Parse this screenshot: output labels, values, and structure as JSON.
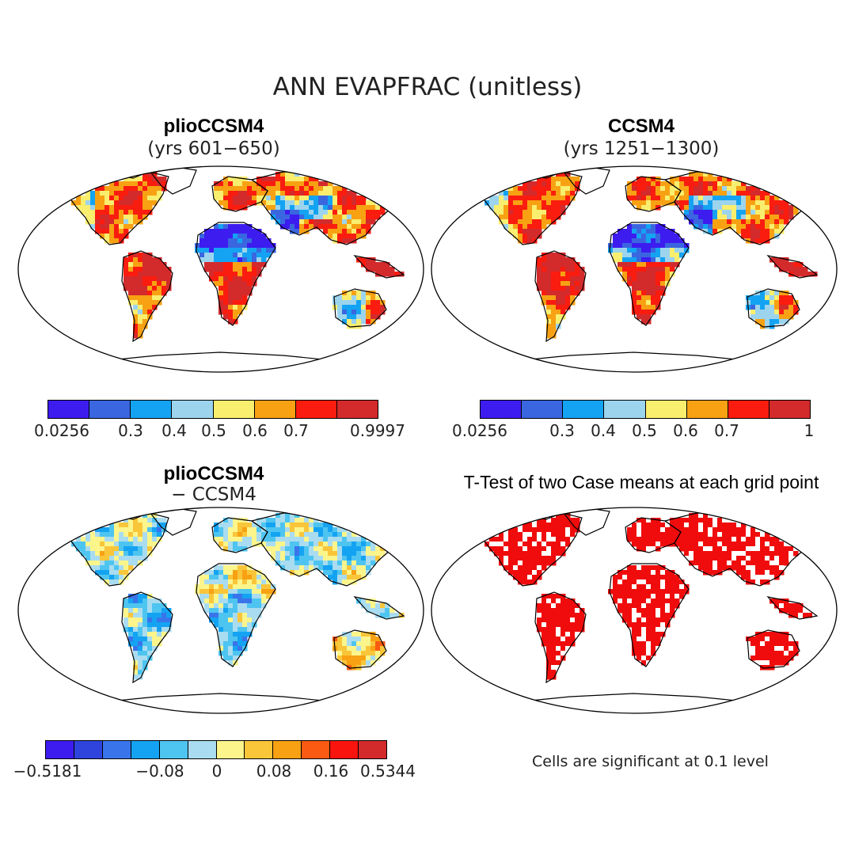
{
  "title": "ANN EVAPFRAC (unitless)",
  "colors": {
    "ratio_scale": [
      "#3d1cf0",
      "#3a66e0",
      "#14a3f2",
      "#9cd4ee",
      "#f9ee6e",
      "#f7a113",
      "#fa1c0f",
      "#d32a2c"
    ],
    "diff_scale": [
      "#3d1cf0",
      "#2f44dc",
      "#3a74ea",
      "#14a3f2",
      "#4ec4f0",
      "#a9dcf0",
      "#fbf58c",
      "#f9c63a",
      "#f7a113",
      "#fb5a12",
      "#f9140e",
      "#d32a2c"
    ],
    "significant": "#f00c0c"
  },
  "panels": {
    "plio": {
      "title": "plioCCSM4",
      "subtitle": "(yrs 601−650)",
      "colorbar_labels": [
        "0.0256",
        "0.3",
        "0.4",
        "0.5",
        "0.6",
        "0.7",
        "0.9997"
      ]
    },
    "ccsm": {
      "title": "CCSM4",
      "subtitle": "(yrs 1251−1300)",
      "colorbar_labels": [
        "0.0256",
        "0.3",
        "0.4",
        "0.5",
        "0.6",
        "0.7",
        "1"
      ]
    },
    "diff": {
      "title": "plioCCSM4",
      "subtitle": "− CCSM4",
      "colorbar_labels": [
        "−0.5181",
        "−0.08",
        "0",
        "0.08",
        "0.16",
        "0.5344"
      ]
    },
    "ttest": {
      "title": "T-Test of two Case means at each grid point",
      "note": "Cells are significant at 0.1 level"
    }
  }
}
